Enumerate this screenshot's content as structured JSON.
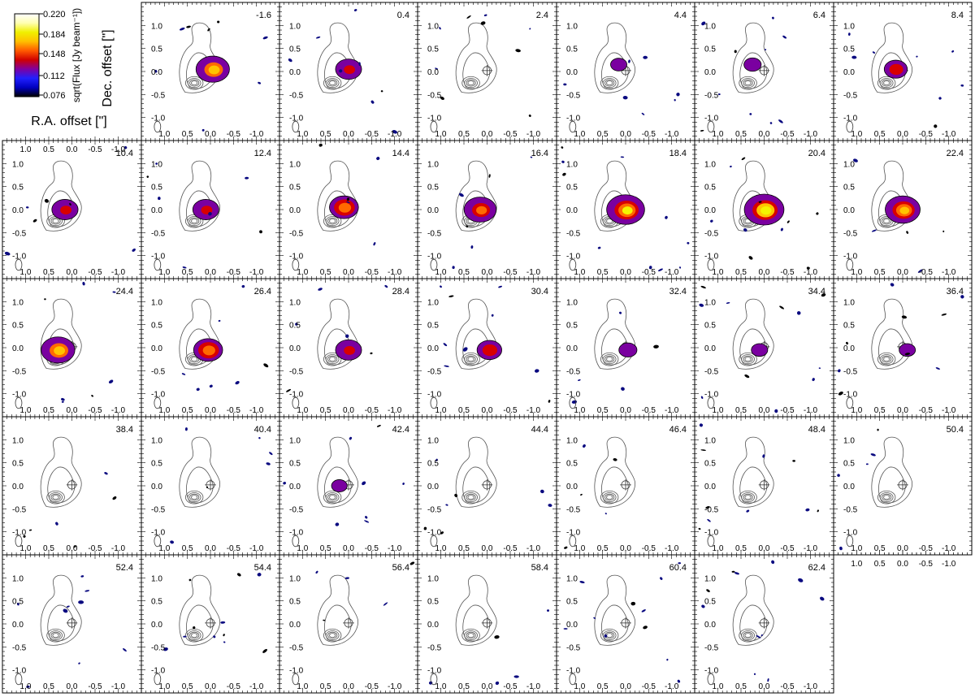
{
  "chart_data": {
    "type": "channel-map",
    "colorbar": {
      "label": "sqrt(Flux [Jy beam⁻¹])",
      "ticks": [
        "0.220",
        "0.184",
        "0.148",
        "0.112",
        "0.076"
      ],
      "colors": [
        "#000000",
        "#0000c0",
        "#2020ff",
        "#8000a0",
        "#d00000",
        "#ff5a00",
        "#ffc000",
        "#f0f000",
        "#ffffb0",
        "#ffffff"
      ]
    },
    "axes": {
      "ra_label": "R.A. offset [\"]",
      "dec_label": "Dec. offset [\"]",
      "x_ticks": [
        "1.0",
        "0.5",
        "0.0",
        "-0.5",
        "-1.0"
      ],
      "y_ticks": [
        "1.0",
        "0.5",
        "0.0",
        "-0.5",
        "-1.0"
      ],
      "xlim": [
        1.5,
        -1.5
      ],
      "ylim": [
        -1.5,
        1.5
      ]
    },
    "channels": [
      {
        "label": "-1.6",
        "v": -1.6,
        "peak": 0.7,
        "dx": -0.05,
        "dy": 0.05
      },
      {
        "label": "0.4",
        "v": 0.4,
        "peak": 0.45,
        "dx": 0.0,
        "dy": 0.05
      },
      {
        "label": "2.4",
        "v": 2.4,
        "peak": 0.0,
        "dx": 0.0,
        "dy": 0.0
      },
      {
        "label": "4.4",
        "v": 4.4,
        "peak": 0.12,
        "dx": 0.15,
        "dy": 0.15
      },
      {
        "label": "6.4",
        "v": 6.4,
        "peak": 0.15,
        "dx": 0.25,
        "dy": 0.15
      },
      {
        "label": "8.4",
        "v": 8.4,
        "peak": 0.35,
        "dx": 0.15,
        "dy": 0.05
      },
      {
        "label": "10.4",
        "v": 10.4,
        "peak": 0.45,
        "dx": 0.15,
        "dy": 0.0
      },
      {
        "label": "12.4",
        "v": 12.4,
        "peak": 0.45,
        "dx": 0.1,
        "dy": 0.0
      },
      {
        "label": "14.4",
        "v": 14.4,
        "peak": 0.55,
        "dx": 0.1,
        "dy": 0.05
      },
      {
        "label": "16.4",
        "v": 16.4,
        "peak": 0.65,
        "dx": 0.15,
        "dy": 0.0
      },
      {
        "label": "18.4",
        "v": 18.4,
        "peak": 0.85,
        "dx": 0.0,
        "dy": 0.0
      },
      {
        "label": "20.4",
        "v": 20.4,
        "peak": 0.9,
        "dx": 0.0,
        "dy": 0.0
      },
      {
        "label": "22.4",
        "v": 22.4,
        "peak": 0.75,
        "dx": 0.0,
        "dy": 0.0
      },
      {
        "label": "24.4",
        "v": 24.4,
        "peak": 0.7,
        "dx": 0.3,
        "dy": -0.05
      },
      {
        "label": "26.4",
        "v": 26.4,
        "peak": 0.55,
        "dx": 0.05,
        "dy": -0.05
      },
      {
        "label": "28.4",
        "v": 28.4,
        "peak": 0.45,
        "dx": 0.0,
        "dy": -0.05
      },
      {
        "label": "30.4",
        "v": 30.4,
        "peak": 0.4,
        "dx": -0.05,
        "dy": -0.05
      },
      {
        "label": "32.4",
        "v": 32.4,
        "peak": 0.18,
        "dx": -0.05,
        "dy": -0.05
      },
      {
        "label": "34.4",
        "v": 34.4,
        "peak": 0.12,
        "dx": 0.1,
        "dy": -0.05
      },
      {
        "label": "36.4",
        "v": 36.4,
        "peak": 0.12,
        "dx": -0.1,
        "dy": -0.05
      },
      {
        "label": "38.4",
        "v": 38.4,
        "peak": 0.0,
        "dx": 0.0,
        "dy": 0.0
      },
      {
        "label": "40.4",
        "v": 40.4,
        "peak": 0.0,
        "dx": 0.0,
        "dy": 0.0
      },
      {
        "label": "42.4",
        "v": 42.4,
        "peak": 0.1,
        "dx": 0.2,
        "dy": 0.0
      },
      {
        "label": "44.4",
        "v": 44.4,
        "peak": 0.0,
        "dx": 0.0,
        "dy": 0.0
      },
      {
        "label": "46.4",
        "v": 46.4,
        "peak": 0.0,
        "dx": 0.0,
        "dy": 0.0
      },
      {
        "label": "48.4",
        "v": 48.4,
        "peak": 0.0,
        "dx": 0.0,
        "dy": 0.0
      },
      {
        "label": "50.4",
        "v": 50.4,
        "peak": 0.0,
        "dx": 0.0,
        "dy": 0.0
      },
      {
        "label": "52.4",
        "v": 52.4,
        "peak": 0.0,
        "dx": 0.0,
        "dy": 0.0
      },
      {
        "label": "54.4",
        "v": 54.4,
        "peak": 0.0,
        "dx": 0.0,
        "dy": 0.0
      },
      {
        "label": "56.4",
        "v": 56.4,
        "peak": 0.0,
        "dx": 0.0,
        "dy": 0.0
      },
      {
        "label": "58.4",
        "v": 58.4,
        "peak": 0.0,
        "dx": 0.0,
        "dy": 0.0
      },
      {
        "label": "60.4",
        "v": 60.4,
        "peak": 0.0,
        "dx": 0.0,
        "dy": 0.0
      },
      {
        "label": "62.4",
        "v": 62.4,
        "peak": 0.0,
        "dx": 0.0,
        "dy": 0.0
      }
    ]
  }
}
